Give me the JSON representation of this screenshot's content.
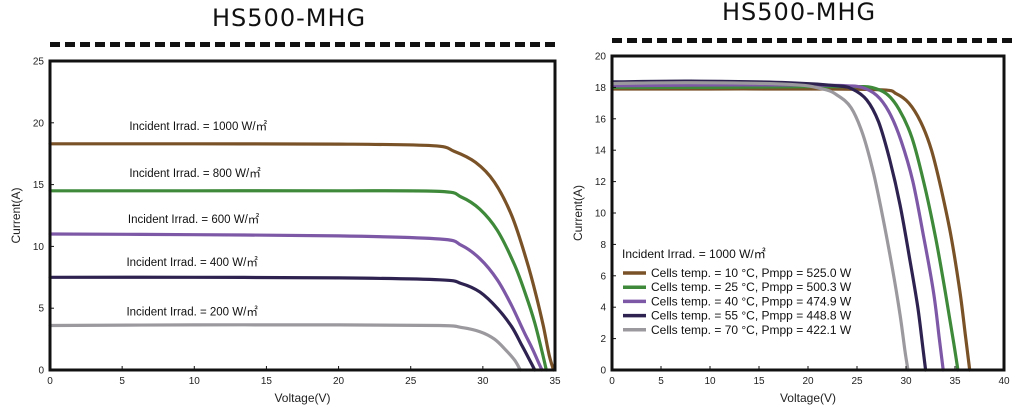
{
  "colors": {
    "brown": "#7a5228",
    "green": "#3e8a3a",
    "purple": "#7d58a6",
    "navy": "#2e2350",
    "gray": "#9c999e"
  },
  "chart_data": [
    {
      "type": "line",
      "title": "HS500-MHG",
      "xlabel": "Voltage(V)",
      "ylabel": "Current(A)",
      "xlim": [
        0,
        35
      ],
      "ylim": [
        0,
        25
      ],
      "xticks": [
        0,
        5,
        10,
        15,
        20,
        25,
        30,
        35
      ],
      "yticks": [
        0,
        5,
        10,
        15,
        20,
        25
      ],
      "grid": false,
      "series": [
        {
          "name": "Incident Irrad. = 1000 W/㎡",
          "color": "brown",
          "x": [
            0,
            10,
            20,
            26.5,
            28,
            29.5,
            30.8,
            32,
            33,
            33.7,
            34.2,
            34.6,
            34.9
          ],
          "y": [
            18.3,
            18.3,
            18.28,
            18.15,
            17.7,
            16.8,
            15.2,
            12.5,
            9,
            6,
            3.5,
            1.2,
            0
          ]
        },
        {
          "name": "Incident Irrad. = 800 W/㎡",
          "color": "green",
          "x": [
            0,
            10,
            20,
            27,
            28.5,
            29.8,
            31,
            32.2,
            33,
            33.6,
            34.1,
            34.4
          ],
          "y": [
            14.5,
            14.5,
            14.5,
            14.45,
            14.0,
            13.0,
            11.3,
            8.5,
            6,
            3.8,
            1.5,
            0
          ]
        },
        {
          "name": "Incident Irrad. = 600 W/㎡",
          "color": "purple",
          "x": [
            0,
            10,
            20,
            27,
            28.5,
            29.8,
            31,
            32,
            32.8,
            33.4,
            33.9,
            34.1
          ],
          "y": [
            11.0,
            10.95,
            10.85,
            10.6,
            10.1,
            9.0,
            7.3,
            5.2,
            3.2,
            1.8,
            0.5,
            0
          ]
        },
        {
          "name": "Incident Irrad. = 400 W/㎡",
          "color": "navy",
          "x": [
            0,
            10,
            20,
            27,
            28.5,
            29.8,
            31,
            32,
            32.7,
            33.2,
            33.6
          ],
          "y": [
            7.5,
            7.5,
            7.45,
            7.3,
            7.0,
            6.3,
            5.0,
            3.5,
            2.0,
            0.9,
            0
          ]
        },
        {
          "name": "Incident Irrad. = 200 W/㎡",
          "color": "gray",
          "x": [
            0,
            10,
            20,
            27,
            28.5,
            29.8,
            30.8,
            31.6,
            32.2,
            32.6
          ],
          "y": [
            3.6,
            3.65,
            3.65,
            3.6,
            3.45,
            3.1,
            2.5,
            1.6,
            0.8,
            0
          ]
        }
      ],
      "annotations": [
        {
          "text": "Incident Irrad. = 1000 W/㎡",
          "x": 5.5,
          "y": 19.4
        },
        {
          "text": "Incident Irrad. = 800 W/㎡",
          "x": 5.5,
          "y": 15.6
        },
        {
          "text": "Incident Irrad. = 600 W/㎡",
          "x": 5.4,
          "y": 11.9
        },
        {
          "text": "Incident Irrad. = 400 W/㎡",
          "x": 5.3,
          "y": 8.4
        },
        {
          "text": "Incident Irrad. = 200 W/㎡",
          "x": 5.3,
          "y": 4.4
        }
      ]
    },
    {
      "type": "line",
      "title": "HS500-MHG",
      "xlabel": "Voltage(V)",
      "ylabel": "Current(A)",
      "xlim": [
        0,
        40
      ],
      "ylim": [
        0,
        20
      ],
      "xticks": [
        0,
        5,
        10,
        15,
        20,
        25,
        30,
        35,
        40
      ],
      "yticks": [
        0,
        2,
        4,
        6,
        8,
        10,
        12,
        14,
        16,
        18,
        20
      ],
      "grid": false,
      "legend_title": "Incident Irrad. = 1000 W/㎡",
      "legend_position": "bottom-left",
      "series": [
        {
          "name": "Cells temp. = 10 °C,  Pmpp = 525.0 W",
          "color": "brown",
          "x": [
            0,
            10,
            20,
            27.5,
            29,
            30.3,
            31.5,
            32.6,
            33.6,
            34.6,
            35.5,
            36.1,
            36.5
          ],
          "y": [
            17.9,
            17.9,
            17.9,
            17.85,
            17.6,
            17.0,
            15.8,
            14.0,
            11.5,
            8.5,
            5.0,
            2.0,
            0
          ]
        },
        {
          "name": "Cells temp. = 25 °C,  Pmpp = 500.3 W",
          "color": "green",
          "x": [
            0,
            10,
            20,
            25,
            26.5,
            28,
            29.3,
            30.6,
            31.8,
            33,
            34,
            34.8,
            35.3
          ],
          "y": [
            18.0,
            18.0,
            18.05,
            18.05,
            18.0,
            17.6,
            16.6,
            14.8,
            12.0,
            8.5,
            5.0,
            2.0,
            0
          ]
        },
        {
          "name": "Cells temp. = 40 °C,  Pmpp = 474.9 W",
          "color": "purple",
          "x": [
            0,
            10,
            20,
            24,
            25.5,
            27,
            28.3,
            29.5,
            30.7,
            31.8,
            32.8,
            33.4,
            33.8
          ],
          "y": [
            18.1,
            18.15,
            18.15,
            18.1,
            18.0,
            17.5,
            16.4,
            14.6,
            12.0,
            8.5,
            5.0,
            2.0,
            0
          ]
        },
        {
          "name": "Cells temp. = 55 °C,  Pmpp = 448.8 W",
          "color": "navy",
          "x": [
            0,
            8,
            18,
            23,
            24.5,
            26,
            27.2,
            28.3,
            29.4,
            30.4,
            31.2,
            31.7,
            32.0
          ],
          "y": [
            18.35,
            18.4,
            18.3,
            18.1,
            17.9,
            17.2,
            15.8,
            13.5,
            10.5,
            7.0,
            4.0,
            1.5,
            0
          ]
        },
        {
          "name": "Cells temp. = 70 °C,  Pmpp = 422.1 W",
          "color": "gray",
          "x": [
            0,
            8,
            18,
            21.5,
            23,
            24.4,
            25.6,
            26.7,
            27.7,
            28.6,
            29.4,
            29.9,
            30.2
          ],
          "y": [
            18.25,
            18.3,
            18.2,
            17.9,
            17.5,
            16.7,
            15.0,
            12.5,
            9.5,
            6.5,
            3.5,
            1.2,
            0
          ]
        }
      ]
    }
  ]
}
